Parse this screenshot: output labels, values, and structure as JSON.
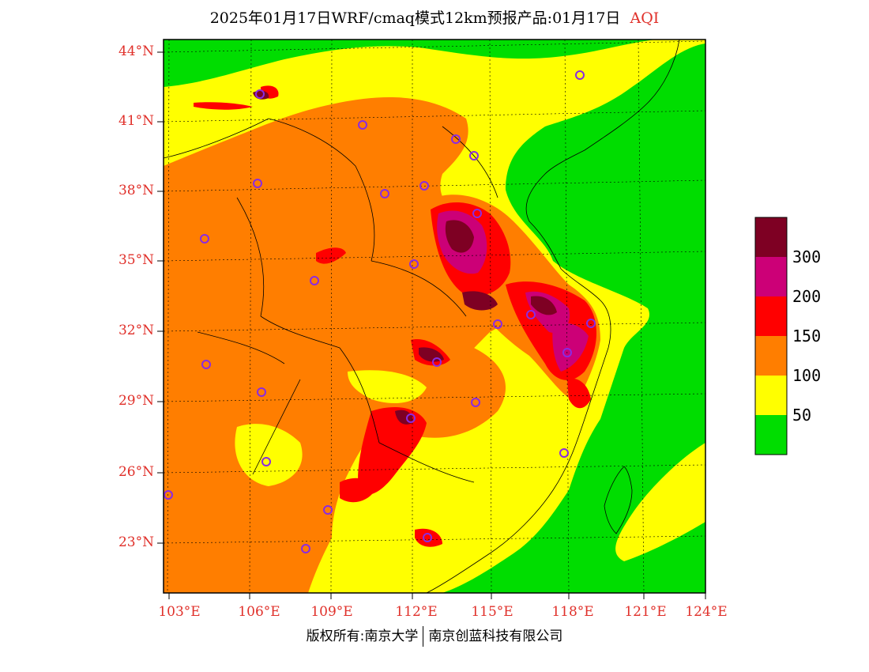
{
  "title": {
    "text": "2025年01月17日WRF/cmaq模式12km预报产品:01月17日",
    "variable": "AQI",
    "variable_color": "#e0302a"
  },
  "latitude_labels": [
    "44°N",
    "41°N",
    "38°N",
    "35°N",
    "32°N",
    "29°N",
    "26°N",
    "23°N"
  ],
  "longitude_labels": [
    "103°E",
    "106°E",
    "109°E",
    "112°E",
    "115°E",
    "118°E",
    "121°E",
    "124°E"
  ],
  "legend": {
    "colors": [
      "#00dd00",
      "#ffff00",
      "#ff7e00",
      "#ff0000",
      "#cc0077",
      "#7e0023"
    ],
    "labels": [
      "50",
      "100",
      "150",
      "200",
      "300"
    ]
  },
  "credit": {
    "left": "版权所有:南京大学",
    "right": "南京创蓝科技有限公司"
  }
}
